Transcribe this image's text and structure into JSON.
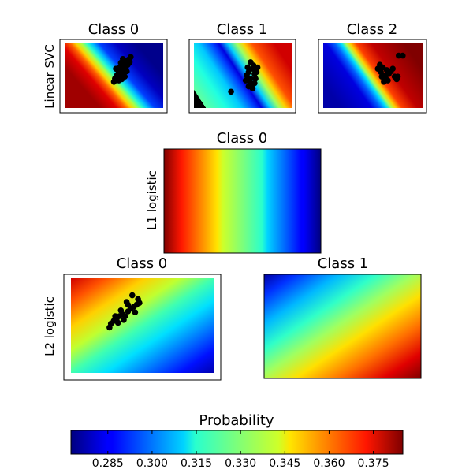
{
  "chart_data": {
    "type": "heatmap",
    "colormap": "jet",
    "rows": [
      {
        "ylabel": "Linear SVC",
        "panels": [
          {
            "title": "Class 0",
            "gradient": "decreasing left to right (tilted)",
            "min": 0.27,
            "max": 0.39,
            "points": [
              {
                "x": 0.54,
                "y": 0.58
              },
              {
                "x": 0.56,
                "y": 0.62
              },
              {
                "x": 0.58,
                "y": 0.64
              },
              {
                "x": 0.55,
                "y": 0.55
              },
              {
                "x": 0.57,
                "y": 0.52
              },
              {
                "x": 0.6,
                "y": 0.66
              },
              {
                "x": 0.62,
                "y": 0.68
              },
              {
                "x": 0.59,
                "y": 0.6
              },
              {
                "x": 0.61,
                "y": 0.58
              },
              {
                "x": 0.63,
                "y": 0.72
              },
              {
                "x": 0.65,
                "y": 0.74
              },
              {
                "x": 0.53,
                "y": 0.5
              },
              {
                "x": 0.56,
                "y": 0.47
              },
              {
                "x": 0.58,
                "y": 0.44
              },
              {
                "x": 0.6,
                "y": 0.53
              },
              {
                "x": 0.62,
                "y": 0.61
              },
              {
                "x": 0.64,
                "y": 0.66
              },
              {
                "x": 0.66,
                "y": 0.7
              },
              {
                "x": 0.51,
                "y": 0.45
              },
              {
                "x": 0.5,
                "y": 0.4
              },
              {
                "x": 0.57,
                "y": 0.69
              },
              {
                "x": 0.61,
                "y": 0.48
              },
              {
                "x": 0.55,
                "y": 0.42
              },
              {
                "x": 0.63,
                "y": 0.56
              },
              {
                "x": 0.52,
                "y": 0.6
              },
              {
                "x": 0.59,
                "y": 0.75
              },
              {
                "x": 0.67,
                "y": 0.78
              }
            ]
          },
          {
            "title": "Class 1",
            "gradient": "increasing left to right (tilted)",
            "min": 0.27,
            "max": 0.39,
            "points": [
              {
                "x": 0.54,
                "y": 0.5
              },
              {
                "x": 0.56,
                "y": 0.55
              },
              {
                "x": 0.58,
                "y": 0.45
              },
              {
                "x": 0.6,
                "y": 0.6
              },
              {
                "x": 0.62,
                "y": 0.52
              },
              {
                "x": 0.57,
                "y": 0.4
              },
              {
                "x": 0.59,
                "y": 0.35
              },
              {
                "x": 0.61,
                "y": 0.65
              },
              {
                "x": 0.63,
                "y": 0.45
              },
              {
                "x": 0.55,
                "y": 0.62
              },
              {
                "x": 0.64,
                "y": 0.55
              },
              {
                "x": 0.58,
                "y": 0.7
              },
              {
                "x": 0.53,
                "y": 0.42
              },
              {
                "x": 0.6,
                "y": 0.3
              },
              {
                "x": 0.62,
                "y": 0.38
              },
              {
                "x": 0.56,
                "y": 0.33
              },
              {
                "x": 0.65,
                "y": 0.62
              },
              {
                "x": 0.38,
                "y": 0.25
              }
            ]
          },
          {
            "title": "Class 2",
            "gradient": "increasing left to right (tilted)",
            "min": 0.27,
            "max": 0.39,
            "points": [
              {
                "x": 0.55,
                "y": 0.6
              },
              {
                "x": 0.58,
                "y": 0.55
              },
              {
                "x": 0.6,
                "y": 0.62
              },
              {
                "x": 0.62,
                "y": 0.5
              },
              {
                "x": 0.64,
                "y": 0.58
              },
              {
                "x": 0.66,
                "y": 0.52
              },
              {
                "x": 0.59,
                "y": 0.48
              },
              {
                "x": 0.57,
                "y": 0.66
              },
              {
                "x": 0.63,
                "y": 0.45
              },
              {
                "x": 0.68,
                "y": 0.56
              },
              {
                "x": 0.7,
                "y": 0.6
              },
              {
                "x": 0.72,
                "y": 0.48
              },
              {
                "x": 0.74,
                "y": 0.44
              },
              {
                "x": 0.61,
                "y": 0.4
              },
              {
                "x": 0.65,
                "y": 0.42
              },
              {
                "x": 0.75,
                "y": 0.48
              },
              {
                "x": 0.76,
                "y": 0.8
              },
              {
                "x": 0.8,
                "y": 0.8
              }
            ]
          }
        ]
      },
      {
        "ylabel": "L1 logistic",
        "panels": [
          {
            "title": "Class 0",
            "gradient": "decreasing left to right (vertical bands)",
            "min": 0.27,
            "max": 0.39,
            "points": []
          }
        ]
      },
      {
        "ylabel": "L2 logistic",
        "panels": [
          {
            "title": "Class 0",
            "gradient": "highest top-left, lowest bottom-right",
            "min": 0.27,
            "max": 0.39,
            "points": [
              {
                "x": 0.28,
                "y": 0.52
              },
              {
                "x": 0.3,
                "y": 0.55
              },
              {
                "x": 0.32,
                "y": 0.57
              },
              {
                "x": 0.34,
                "y": 0.6
              },
              {
                "x": 0.36,
                "y": 0.62
              },
              {
                "x": 0.38,
                "y": 0.6
              },
              {
                "x": 0.4,
                "y": 0.65
              },
              {
                "x": 0.42,
                "y": 0.68
              },
              {
                "x": 0.44,
                "y": 0.7
              },
              {
                "x": 0.46,
                "y": 0.72
              },
              {
                "x": 0.4,
                "y": 0.72
              },
              {
                "x": 0.35,
                "y": 0.66
              },
              {
                "x": 0.31,
                "y": 0.6
              },
              {
                "x": 0.45,
                "y": 0.64
              },
              {
                "x": 0.47,
                "y": 0.78
              },
              {
                "x": 0.43,
                "y": 0.82
              },
              {
                "x": 0.39,
                "y": 0.75
              },
              {
                "x": 0.33,
                "y": 0.53
              },
              {
                "x": 0.27,
                "y": 0.48
              },
              {
                "x": 0.37,
                "y": 0.56
              },
              {
                "x": 0.48,
                "y": 0.74
              }
            ]
          },
          {
            "title": "Class 1",
            "gradient": "lowest top-left, highest bottom-right",
            "min": 0.27,
            "max": 0.39,
            "points": []
          }
        ]
      }
    ],
    "colorbar": {
      "title": "Probability",
      "orientation": "horizontal",
      "range": [
        0.2725,
        0.385
      ],
      "ticks": [
        "0.285",
        "0.300",
        "0.315",
        "0.330",
        "0.345",
        "0.360",
        "0.375"
      ]
    }
  }
}
